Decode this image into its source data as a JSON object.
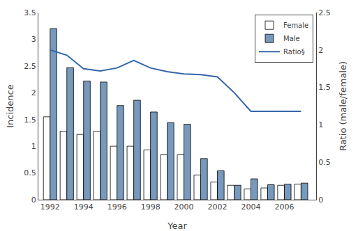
{
  "chart_data": {
    "type": "bar",
    "xlabel": "Year",
    "ylabel": "Incidence",
    "y2label": "Ratio (male/female)",
    "x": [
      1992,
      1993,
      1994,
      1995,
      1996,
      1997,
      1998,
      1999,
      2000,
      2001,
      2002,
      2003,
      2004,
      2005,
      2006,
      2007
    ],
    "series": [
      {
        "name": "Female",
        "type": "bar",
        "color": "#ffffff",
        "values": [
          1.55,
          1.28,
          1.22,
          1.28,
          1.0,
          1.0,
          0.93,
          0.84,
          0.84,
          0.46,
          0.33,
          0.27,
          0.2,
          0.22,
          0.27,
          0.29
        ]
      },
      {
        "name": "Male",
        "type": "bar",
        "color": "#7799bb",
        "values": [
          3.2,
          2.47,
          2.22,
          2.2,
          1.76,
          1.86,
          1.64,
          1.44,
          1.41,
          0.77,
          0.54,
          0.27,
          0.39,
          0.28,
          0.29,
          0.31
        ]
      },
      {
        "name": "Ratio§",
        "type": "line",
        "axis": "y2",
        "color": "#3366aa",
        "values": [
          2.0,
          1.93,
          1.75,
          1.72,
          1.76,
          1.86,
          1.76,
          1.71,
          1.68,
          1.67,
          1.64,
          1.43,
          1.18,
          1.18,
          1.18,
          1.18
        ]
      }
    ],
    "xlim": [
      1991.3,
      2007.9
    ],
    "xticks": [
      1992,
      1994,
      1996,
      1998,
      2000,
      2002,
      2004,
      2006
    ],
    "ylim": [
      0,
      3.5
    ],
    "yticks": [
      0,
      0.5,
      1,
      1.5,
      2,
      2.5,
      3,
      3.5
    ],
    "y2lim": [
      0,
      2.5
    ],
    "y2ticks": [
      0,
      0.5,
      1,
      1.5,
      2,
      2.5
    ],
    "grid": false,
    "legend": "upper right"
  }
}
